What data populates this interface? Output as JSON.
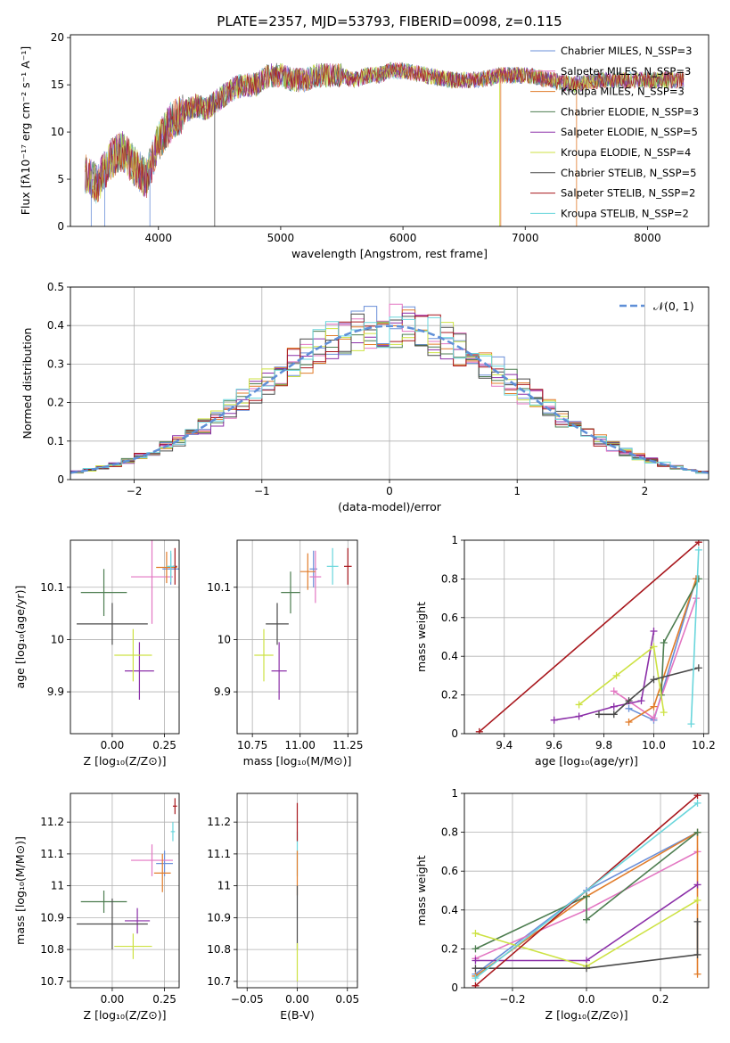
{
  "chart_data": [
    {
      "id": "spectrum",
      "type": "line",
      "title": "PLATE=2357, MJD=53793, FIBERID=0098, z=0.115",
      "xlabel": "wavelength [Angstrom, rest frame]",
      "ylabel": "Flux [fλ10⁻¹⁷ erg cm⁻² s⁻¹ A⁻¹]",
      "xlim": [
        3280,
        8500
      ],
      "ylim": [
        0,
        20.3
      ],
      "xticks": [
        4000,
        5000,
        6000,
        7000,
        8000
      ],
      "yticks": [
        0,
        5,
        10,
        15,
        20
      ],
      "grid": false,
      "legend_position": "top-right",
      "x": [
        3400,
        3500,
        3600,
        3700,
        3800,
        3900,
        4000,
        4100,
        4200,
        4300,
        4400,
        4500,
        4600,
        4700,
        4800,
        4900,
        5000,
        5100,
        5200,
        5300,
        5400,
        5500,
        5600,
        5700,
        5800,
        5900,
        6000,
        6200,
        6400,
        6600,
        6800,
        7000,
        7200,
        7400,
        7600,
        7800,
        8000,
        8200,
        8300
      ],
      "y": [
        5.5,
        4.5,
        7,
        8,
        6.5,
        5,
        9,
        11,
        12,
        12.8,
        12.5,
        13.5,
        14.5,
        15,
        15,
        16,
        16,
        15.5,
        15.5,
        16,
        16,
        16,
        15.5,
        16,
        16,
        16.5,
        16.5,
        16,
        15.5,
        15.5,
        16,
        16,
        15.5,
        15,
        15.5,
        15.5,
        15.5,
        15.5,
        15.5
      ],
      "series": [
        {
          "name": "Chabrier MILES, N_SSP=3",
          "color": "#6a8fd8"
        },
        {
          "name": "Salpeter MILES, N_SSP=3",
          "color": "#e376c2"
        },
        {
          "name": "Kroupa MILES, N_SSP=3",
          "color": "#e17c2a"
        },
        {
          "name": "Chabrier ELODIE, N_SSP=3",
          "color": "#4d7d50"
        },
        {
          "name": "Salpeter ELODIE, N_SSP=5",
          "color": "#8b2fa8"
        },
        {
          "name": "Kroupa ELODIE, N_SSP=4",
          "color": "#cde243"
        },
        {
          "name": "Chabrier STELIB, N_SSP=5",
          "color": "#4a4a4a"
        },
        {
          "name": "Salpeter STELIB, N_SSP=2",
          "color": "#a8171d"
        },
        {
          "name": "Kroupa STELIB, N_SSP=2",
          "color": "#6ad6dc"
        }
      ]
    },
    {
      "id": "residuals",
      "type": "histogram",
      "xlabel": "(data-model)/error",
      "ylabel": "Normed distribution",
      "xlim": [
        -2.5,
        2.5
      ],
      "ylim": [
        0,
        0.5
      ],
      "xticks": [
        -2,
        -1,
        0,
        1,
        2
      ],
      "yticks": [
        0,
        0.1,
        0.2,
        0.3,
        0.4,
        0.5
      ],
      "grid": true,
      "legend": "𝒩(0, 1)",
      "legend_position": "top-right",
      "normal_curve": {
        "mean": 0,
        "sigma": 1,
        "color": "#5f8fd7",
        "style": "dashed"
      },
      "series_colors": [
        "#6a8fd8",
        "#e376c2",
        "#e17c2a",
        "#4d7d50",
        "#8b2fa8",
        "#cde243",
        "#4a4a4a",
        "#a8171d",
        "#6ad6dc"
      ]
    },
    {
      "id": "age_vs_Z",
      "type": "errorbar",
      "xlabel": "Z [log₁₀(Z/Z⊙)]",
      "ylabel": "age  [log₁₀(age/yr)]",
      "xlim": [
        -0.2,
        0.32
      ],
      "ylim": [
        9.82,
        10.19
      ],
      "xticks": [
        0.0,
        0.25
      ],
      "xticklabels": [
        "0.00",
        "0.25"
      ],
      "yticks": [
        9.9,
        10.0,
        10.1
      ],
      "grid": true,
      "points": [
        {
          "x": 0.28,
          "y": 10.135,
          "xerr": 0.04,
          "yerr": 0.03,
          "color": "#6a8fd8"
        },
        {
          "x": 0.19,
          "y": 10.12,
          "xerr": 0.1,
          "yerr": 0.09,
          "color": "#e376c2"
        },
        {
          "x": 0.26,
          "y": 10.138,
          "xerr": 0.05,
          "yerr": 0.03,
          "color": "#e17c2a"
        },
        {
          "x": -0.04,
          "y": 10.09,
          "xerr": 0.11,
          "yerr": 0.045,
          "color": "#4d7d50"
        },
        {
          "x": 0.13,
          "y": 9.94,
          "xerr": 0.07,
          "yerr": 0.055,
          "color": "#8b2fa8"
        },
        {
          "x": 0.1,
          "y": 9.97,
          "xerr": 0.09,
          "yerr": 0.05,
          "color": "#cde243"
        },
        {
          "x": 0.0,
          "y": 10.03,
          "xerr": 0.17,
          "yerr": 0.04,
          "color": "#4a4a4a"
        },
        {
          "x": 0.3,
          "y": 10.14,
          "xerr": 0.01,
          "yerr": 0.035,
          "color": "#a8171d"
        },
        {
          "x": 0.28,
          "y": 10.14,
          "xerr": 0.02,
          "yerr": 0.03,
          "color": "#6ad6dc"
        }
      ]
    },
    {
      "id": "age_vs_mass",
      "type": "errorbar",
      "xlabel": "mass [log₁₀(M/M⊙)]",
      "ylabel": "",
      "xlim": [
        10.67,
        11.3
      ],
      "ylim": [
        9.82,
        10.19
      ],
      "xticks": [
        10.75,
        11.0,
        11.25
      ],
      "xticklabels": [
        "10.75",
        "11.00",
        "11.25"
      ],
      "yticks": [
        9.9,
        10.0,
        10.1
      ],
      "grid": true,
      "points": [
        {
          "x": 11.07,
          "y": 10.135,
          "xerr": 0.02,
          "yerr": 0.035,
          "color": "#6a8fd8"
        },
        {
          "x": 11.08,
          "y": 10.12,
          "xerr": 0.03,
          "yerr": 0.05,
          "color": "#e376c2"
        },
        {
          "x": 11.04,
          "y": 10.13,
          "xerr": 0.04,
          "yerr": 0.035,
          "color": "#e17c2a"
        },
        {
          "x": 10.95,
          "y": 10.09,
          "xerr": 0.05,
          "yerr": 0.04,
          "color": "#4d7d50"
        },
        {
          "x": 10.89,
          "y": 9.94,
          "xerr": 0.04,
          "yerr": 0.055,
          "color": "#8b2fa8"
        },
        {
          "x": 10.81,
          "y": 9.97,
          "xerr": 0.05,
          "yerr": 0.05,
          "color": "#cde243"
        },
        {
          "x": 10.88,
          "y": 10.03,
          "xerr": 0.06,
          "yerr": 0.04,
          "color": "#4a4a4a"
        },
        {
          "x": 11.25,
          "y": 10.14,
          "xerr": 0.02,
          "yerr": 0.035,
          "color": "#a8171d"
        },
        {
          "x": 11.17,
          "y": 10.14,
          "xerr": 0.03,
          "yerr": 0.035,
          "color": "#6ad6dc"
        }
      ]
    },
    {
      "id": "weight_vs_age",
      "type": "line",
      "xlabel": "age  [log₁₀(age/yr)]",
      "ylabel": "mass weight",
      "xlim": [
        9.24,
        10.22
      ],
      "ylim": [
        0,
        1
      ],
      "xticks": [
        9.4,
        9.6,
        9.8,
        10.0,
        10.2
      ],
      "xticklabels": [
        "9.4",
        "9.6",
        "9.8",
        "10.0",
        "10.2"
      ],
      "yticks": [
        0,
        0.2,
        0.4,
        0.6,
        0.8,
        1.0
      ],
      "grid": true,
      "series": [
        {
          "name": "Chabrier MILES, N_SSP=3",
          "color": "#6a8fd8",
          "x": [
            9.9,
            10.0,
            10.17
          ],
          "y": [
            0.13,
            0.07,
            0.8
          ]
        },
        {
          "name": "Salpeter MILES, N_SSP=3",
          "color": "#e376c2",
          "x": [
            9.84,
            10.0,
            10.17
          ],
          "y": [
            0.22,
            0.08,
            0.7
          ]
        },
        {
          "name": "Kroupa MILES, N_SSP=3",
          "color": "#e17c2a",
          "x": [
            9.9,
            10.0,
            10.17
          ],
          "y": [
            0.06,
            0.14,
            0.8
          ]
        },
        {
          "name": "Chabrier ELODIE, N_SSP=3",
          "color": "#4d7d50",
          "x": [
            10.03,
            10.04,
            10.18
          ],
          "y": [
            0.2,
            0.47,
            0.8
          ]
        },
        {
          "name": "Salpeter ELODIE, N_SSP=5",
          "color": "#8b2fa8",
          "x": [
            9.6,
            9.7,
            9.84,
            9.95,
            10.0
          ],
          "y": [
            0.07,
            0.09,
            0.14,
            0.17,
            0.53
          ]
        },
        {
          "name": "Kroupa ELODIE, N_SSP=4",
          "color": "#cde243",
          "x": [
            9.7,
            9.85,
            10.0,
            10.04
          ],
          "y": [
            0.15,
            0.3,
            0.45,
            0.11
          ]
        },
        {
          "name": "Chabrier STELIB, N_SSP=5",
          "color": "#4a4a4a",
          "x": [
            9.78,
            9.84,
            9.9,
            10.0,
            10.18
          ],
          "y": [
            0.1,
            0.1,
            0.17,
            0.28,
            0.34
          ]
        },
        {
          "name": "Salpeter STELIB, N_SSP=2",
          "color": "#a8171d",
          "x": [
            9.3,
            10.18
          ],
          "y": [
            0.01,
            0.99
          ]
        },
        {
          "name": "Kroupa STELIB, N_SSP=2",
          "color": "#6ad6dc",
          "x": [
            10.15,
            10.18
          ],
          "y": [
            0.05,
            0.95
          ]
        }
      ]
    },
    {
      "id": "mass_vs_Z",
      "type": "errorbar",
      "xlabel": "Z [log₁₀(Z/Z⊙)]",
      "ylabel": "mass [log₁₀(M/M⊙)]",
      "xlim": [
        -0.2,
        0.32
      ],
      "ylim": [
        10.68,
        11.29
      ],
      "xticks": [
        0.0,
        0.25
      ],
      "xticklabels": [
        "0.00",
        "0.25"
      ],
      "yticks": [
        10.7,
        10.8,
        10.9,
        11.0,
        11.1,
        11.2
      ],
      "grid": true,
      "points": [
        {
          "x": 0.25,
          "y": 11.07,
          "xerr": 0.04,
          "yerr": 0.04,
          "color": "#6a8fd8"
        },
        {
          "x": 0.19,
          "y": 11.08,
          "xerr": 0.1,
          "yerr": 0.05,
          "color": "#e376c2"
        },
        {
          "x": 0.24,
          "y": 11.04,
          "xerr": 0.04,
          "yerr": 0.06,
          "color": "#e17c2a"
        },
        {
          "x": -0.04,
          "y": 10.95,
          "xerr": 0.11,
          "yerr": 0.035,
          "color": "#4d7d50"
        },
        {
          "x": 0.12,
          "y": 10.89,
          "xerr": 0.06,
          "yerr": 0.04,
          "color": "#8b2fa8"
        },
        {
          "x": 0.1,
          "y": 10.81,
          "xerr": 0.09,
          "yerr": 0.04,
          "color": "#cde243"
        },
        {
          "x": 0.0,
          "y": 10.88,
          "xerr": 0.17,
          "yerr": 0.08,
          "color": "#4a4a4a"
        },
        {
          "x": 0.3,
          "y": 11.25,
          "xerr": 0.01,
          "yerr": 0.025,
          "color": "#a8171d"
        },
        {
          "x": 0.29,
          "y": 11.17,
          "xerr": 0.01,
          "yerr": 0.03,
          "color": "#6ad6dc"
        }
      ]
    },
    {
      "id": "mass_vs_ebv",
      "type": "errorbar",
      "xlabel": "E(B-V)",
      "ylabel": "",
      "xlim": [
        -0.06,
        0.06
      ],
      "ylim": [
        10.68,
        11.29
      ],
      "xticks": [
        -0.05,
        0.0,
        0.05
      ],
      "xticklabels": [
        "−0.05",
        "0.00",
        "0.05"
      ],
      "yticks": [
        10.7,
        10.8,
        10.9,
        11.0,
        11.1,
        11.2
      ],
      "grid": true,
      "points": [
        {
          "x": 0,
          "y": 11.1,
          "xerr": 0,
          "yerr": 0.07,
          "color": "#6ad6dc"
        },
        {
          "x": 0,
          "y": 11.04,
          "xerr": 0,
          "yerr": 0.07,
          "color": "#e17c2a"
        },
        {
          "x": 0,
          "y": 11.2,
          "xerr": 0,
          "yerr": 0.06,
          "color": "#a8171d"
        },
        {
          "x": 0,
          "y": 10.9,
          "xerr": 0,
          "yerr": 0.1,
          "color": "#4a4a4a"
        },
        {
          "x": 0,
          "y": 10.76,
          "xerr": 0,
          "yerr": 0.06,
          "color": "#cde243"
        }
      ]
    },
    {
      "id": "weight_vs_Z",
      "type": "line",
      "xlabel": "Z [log₁₀(Z/Z⊙)]",
      "ylabel": "mass weight",
      "xlim": [
        -0.33,
        0.33
      ],
      "ylim": [
        0,
        1
      ],
      "xticks": [
        -0.2,
        0.0,
        0.2
      ],
      "xticklabels": [
        "−0.2",
        "0.0",
        "0.2"
      ],
      "yticks": [
        0,
        0.2,
        0.4,
        0.6,
        0.8,
        1.0
      ],
      "grid": true,
      "series": [
        {
          "name": "Chabrier MILES, N_SSP=3",
          "color": "#6a8fd8",
          "x": [
            -0.3,
            0.0,
            0.3
          ],
          "y": [
            0.07,
            0.5,
            0.8
          ]
        },
        {
          "name": "Salpeter MILES, N_SSP=3",
          "color": "#e376c2",
          "x": [
            -0.3,
            0.0,
            0.3
          ],
          "y": [
            0.15,
            0.4,
            0.7
          ]
        },
        {
          "name": "Kroupa MILES, N_SSP=3",
          "color": "#e17c2a",
          "x": [
            -0.3,
            0.0,
            0.3,
            0.3
          ],
          "y": [
            0.06,
            0.47,
            0.8,
            0.07
          ]
        },
        {
          "name": "Chabrier ELODIE, N_SSP=3",
          "color": "#4d7d50",
          "x": [
            -0.3,
            0.0,
            0.0,
            0.3
          ],
          "y": [
            0.2,
            0.47,
            0.35,
            0.8
          ]
        },
        {
          "name": "Salpeter ELODIE, N_SSP=5",
          "color": "#8b2fa8",
          "x": [
            -0.3,
            0.0,
            0.3
          ],
          "y": [
            0.14,
            0.14,
            0.53
          ]
        },
        {
          "name": "Kroupa ELODIE, N_SSP=4",
          "color": "#cde243",
          "x": [
            -0.3,
            0.0,
            0.3
          ],
          "y": [
            0.28,
            0.11,
            0.45
          ]
        },
        {
          "name": "Chabrier STELIB, N_SSP=5",
          "color": "#4a4a4a",
          "x": [
            -0.3,
            0.0,
            0.3,
            0.3
          ],
          "y": [
            0.1,
            0.1,
            0.17,
            0.34
          ]
        },
        {
          "name": "Salpeter STELIB, N_SSP=2",
          "color": "#a8171d",
          "x": [
            -0.3,
            0.3
          ],
          "y": [
            0.01,
            0.99
          ]
        },
        {
          "name": "Kroupa STELIB, N_SSP=2",
          "color": "#6ad6dc",
          "x": [
            -0.3,
            0.3
          ],
          "y": [
            0.05,
            0.95
          ]
        }
      ]
    }
  ]
}
